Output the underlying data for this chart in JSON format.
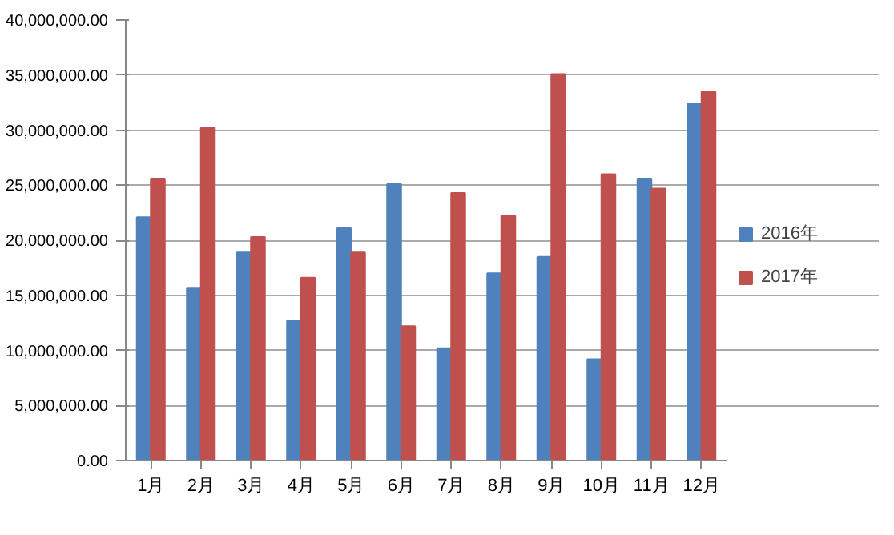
{
  "chart_data": {
    "type": "bar",
    "categories": [
      "1月",
      "2月",
      "3月",
      "4月",
      "5月",
      "6月",
      "7月",
      "8月",
      "9月",
      "10月",
      "11月",
      "12月"
    ],
    "series": [
      {
        "name": "2016年",
        "color": "#4f81bd",
        "values": [
          22100000,
          15700000,
          18900000,
          12700000,
          21100000,
          25100000,
          10200000,
          17000000,
          18500000,
          9200000,
          25600000,
          32400000
        ]
      },
      {
        "name": "2017年",
        "color": "#c0504d",
        "values": [
          25600000,
          30200000,
          20300000,
          16600000,
          18900000,
          12200000,
          24300000,
          22200000,
          35100000,
          26000000,
          24700000,
          33500000
        ]
      }
    ],
    "ylim": [
      0,
      40000000
    ],
    "yticks": [
      {
        "value": 0,
        "label": "0.00"
      },
      {
        "value": 5000000,
        "label": "5,000,000.00"
      },
      {
        "value": 10000000,
        "label": "10,000,000.00"
      },
      {
        "value": 15000000,
        "label": "15,000,000.00"
      },
      {
        "value": 20000000,
        "label": "20,000,000.00"
      },
      {
        "value": 25000000,
        "label": "25,000,000.00"
      },
      {
        "value": 30000000,
        "label": "30,000,000.00"
      },
      {
        "value": 35000000,
        "label": "35,000,000.00"
      },
      {
        "value": 40000000,
        "label": "40,000,000.00"
      }
    ],
    "grid": "y",
    "legend": "right"
  }
}
